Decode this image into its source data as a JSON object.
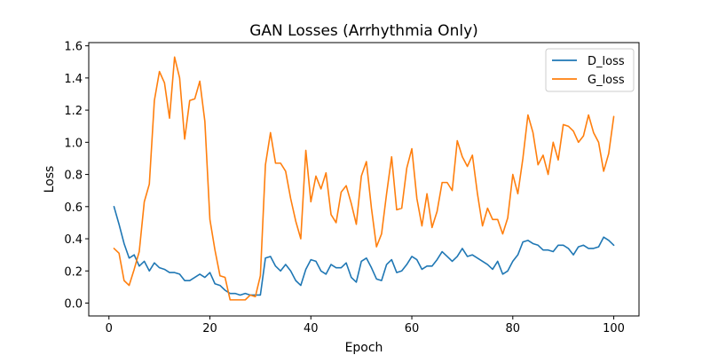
{
  "chart_data": {
    "type": "line",
    "title": "GAN Losses (Arrhythmia Only)",
    "xlabel": "Epoch",
    "ylabel": "Loss",
    "xlim": [
      -4,
      105
    ],
    "ylim": [
      -0.08,
      1.62
    ],
    "xticks": [
      0,
      20,
      40,
      60,
      80,
      100
    ],
    "yticks": [
      0.0,
      0.2,
      0.4,
      0.6,
      0.8,
      1.0,
      1.2,
      1.4,
      1.6
    ],
    "grid": false,
    "legend_position": "top-right",
    "x": [
      1,
      2,
      3,
      4,
      5,
      6,
      7,
      8,
      9,
      10,
      11,
      12,
      13,
      14,
      15,
      16,
      17,
      18,
      19,
      20,
      21,
      22,
      23,
      24,
      25,
      26,
      27,
      28,
      29,
      30,
      31,
      32,
      33,
      34,
      35,
      36,
      37,
      38,
      39,
      40,
      41,
      42,
      43,
      44,
      45,
      46,
      47,
      48,
      49,
      50,
      51,
      52,
      53,
      54,
      55,
      56,
      57,
      58,
      59,
      60,
      61,
      62,
      63,
      64,
      65,
      66,
      67,
      68,
      69,
      70,
      71,
      72,
      73,
      74,
      75,
      76,
      77,
      78,
      79,
      80,
      81,
      82,
      83,
      84,
      85,
      86,
      87,
      88,
      89,
      90,
      91,
      92,
      93,
      94,
      95,
      96,
      97,
      98,
      99,
      100
    ],
    "series": [
      {
        "name": "D_loss",
        "color": "#1f77b4",
        "values": [
          0.6,
          0.49,
          0.37,
          0.28,
          0.3,
          0.23,
          0.26,
          0.2,
          0.25,
          0.22,
          0.21,
          0.19,
          0.19,
          0.18,
          0.14,
          0.14,
          0.16,
          0.18,
          0.16,
          0.19,
          0.12,
          0.11,
          0.08,
          0.06,
          0.06,
          0.05,
          0.06,
          0.05,
          0.05,
          0.05,
          0.28,
          0.29,
          0.23,
          0.2,
          0.24,
          0.2,
          0.14,
          0.11,
          0.21,
          0.27,
          0.26,
          0.2,
          0.18,
          0.24,
          0.22,
          0.22,
          0.25,
          0.16,
          0.13,
          0.26,
          0.28,
          0.22,
          0.15,
          0.14,
          0.24,
          0.27,
          0.19,
          0.2,
          0.24,
          0.29,
          0.27,
          0.21,
          0.23,
          0.23,
          0.27,
          0.32,
          0.29,
          0.26,
          0.29,
          0.34,
          0.29,
          0.3,
          0.28,
          0.26,
          0.24,
          0.21,
          0.26,
          0.18,
          0.2,
          0.26,
          0.3,
          0.38,
          0.39,
          0.37,
          0.36,
          0.33,
          0.33,
          0.32,
          0.36,
          0.36,
          0.34,
          0.3,
          0.35,
          0.36,
          0.34,
          0.34,
          0.35,
          0.41,
          0.39,
          0.36
        ]
      },
      {
        "name": "G_loss",
        "color": "#ff7f0e",
        "values": [
          0.34,
          0.31,
          0.14,
          0.11,
          0.21,
          0.32,
          0.63,
          0.74,
          1.26,
          1.44,
          1.37,
          1.15,
          1.53,
          1.4,
          1.02,
          1.26,
          1.27,
          1.38,
          1.13,
          0.52,
          0.33,
          0.17,
          0.16,
          0.02,
          0.02,
          0.02,
          0.02,
          0.05,
          0.04,
          0.17,
          0.86,
          1.06,
          0.87,
          0.87,
          0.82,
          0.65,
          0.51,
          0.4,
          0.95,
          0.63,
          0.79,
          0.71,
          0.81,
          0.55,
          0.5,
          0.69,
          0.73,
          0.62,
          0.49,
          0.79,
          0.88,
          0.59,
          0.35,
          0.43,
          0.68,
          0.91,
          0.58,
          0.59,
          0.84,
          0.96,
          0.65,
          0.48,
          0.68,
          0.47,
          0.57,
          0.75,
          0.75,
          0.7,
          1.01,
          0.91,
          0.85,
          0.92,
          0.68,
          0.48,
          0.59,
          0.52,
          0.52,
          0.43,
          0.53,
          0.8,
          0.68,
          0.9,
          1.17,
          1.06,
          0.86,
          0.92,
          0.8,
          1.0,
          0.89,
          1.11,
          1.1,
          1.07,
          1.0,
          1.04,
          1.17,
          1.06,
          1.0,
          0.82,
          0.93,
          1.16
        ]
      }
    ]
  }
}
